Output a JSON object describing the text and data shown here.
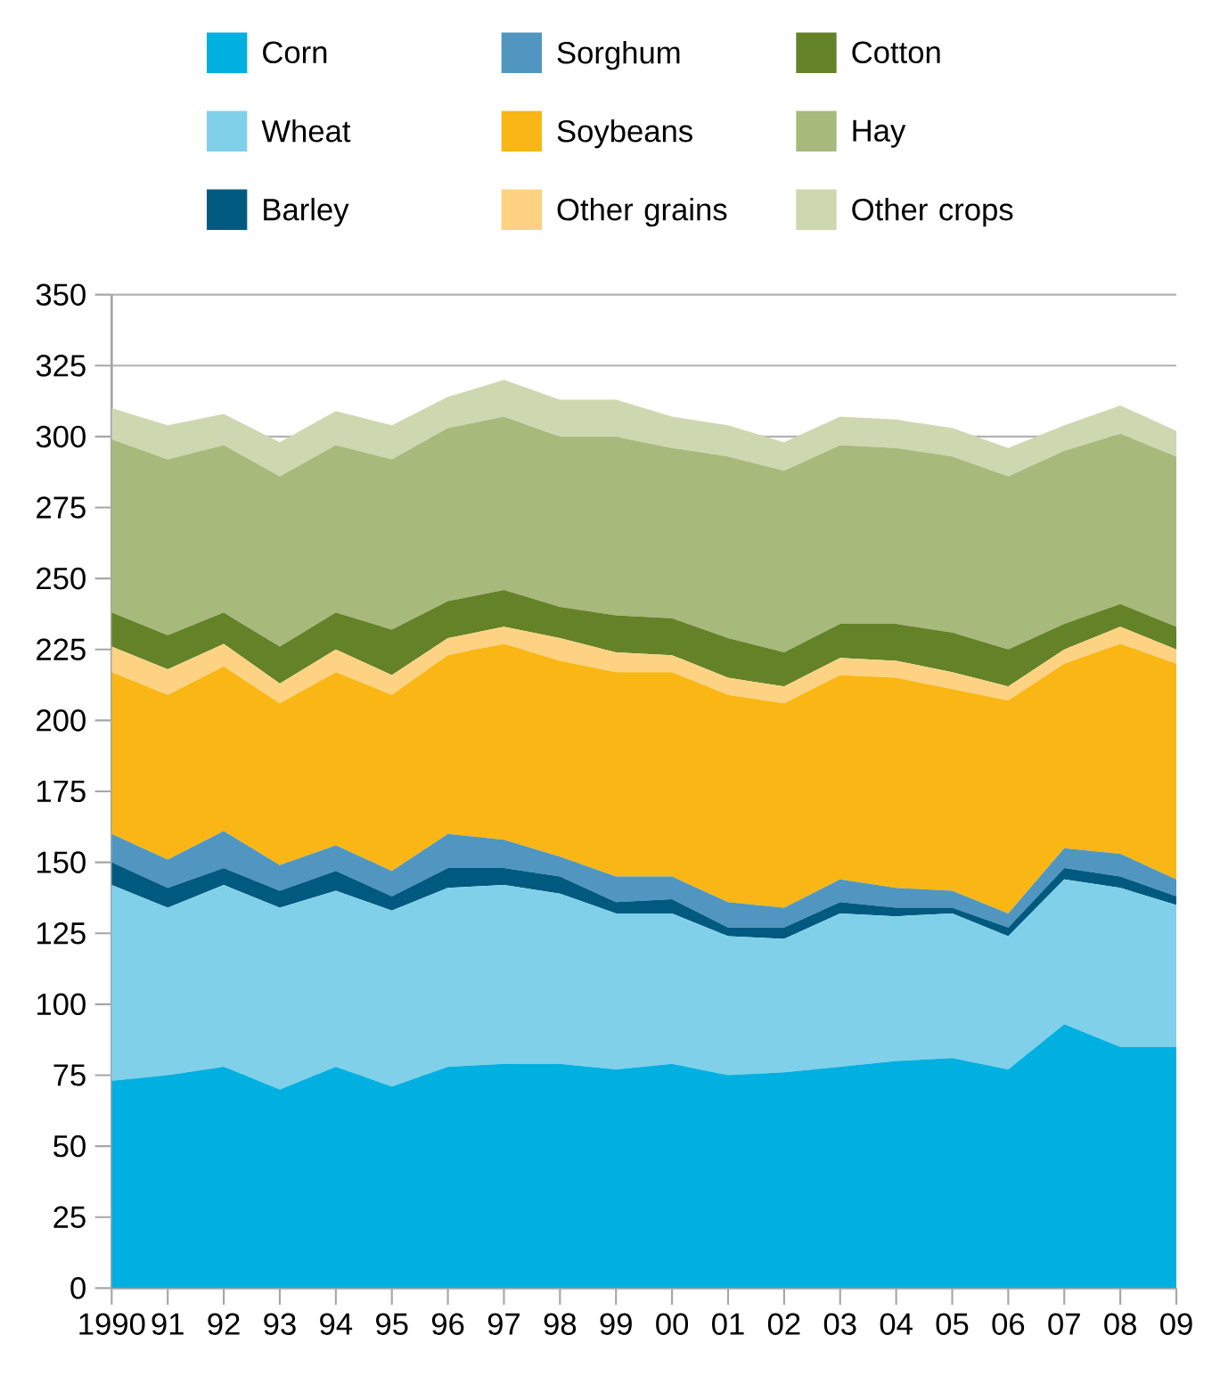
{
  "chart_data": {
    "type": "area",
    "stacked": true,
    "categories": [
      "1990",
      "91",
      "92",
      "93",
      "94",
      "95",
      "96",
      "97",
      "98",
      "99",
      "00",
      "01",
      "02",
      "03",
      "04",
      "05",
      "06",
      "07",
      "08",
      "09"
    ],
    "series": [
      {
        "name": "Corn",
        "color": "#00b0e0",
        "values": [
          73,
          75,
          78,
          70,
          78,
          71,
          78,
          79,
          79,
          77,
          79,
          75,
          76,
          78,
          80,
          81,
          77,
          93,
          85,
          85
        ]
      },
      {
        "name": "Wheat",
        "color": "#80d0ea",
        "values": [
          69,
          59,
          64,
          64,
          62,
          62,
          63,
          63,
          60,
          55,
          53,
          49,
          47,
          54,
          51,
          51,
          47,
          51,
          56,
          50
        ]
      },
      {
        "name": "Barley",
        "color": "#005a80",
        "values": [
          8,
          7,
          6,
          6,
          7,
          5,
          7,
          6,
          6,
          4,
          5,
          3,
          4,
          4,
          3,
          2,
          3,
          4,
          4,
          3
        ]
      },
      {
        "name": "Sorghum",
        "color": "#5096c0",
        "values": [
          10,
          10,
          13,
          9,
          9,
          9,
          12,
          10,
          7,
          9,
          8,
          9,
          7,
          8,
          7,
          6,
          5,
          7,
          8,
          6
        ]
      },
      {
        "name": "Soybeans",
        "color": "#f9b614",
        "values": [
          57,
          58,
          58,
          57,
          61,
          62,
          63,
          69,
          69,
          72,
          72,
          73,
          72,
          72,
          74,
          71,
          75,
          65,
          74,
          76
        ]
      },
      {
        "name": "Other grains",
        "color": "#fdd282",
        "values": [
          9,
          9,
          8,
          7,
          8,
          7,
          6,
          6,
          8,
          7,
          6,
          6,
          6,
          6,
          6,
          6,
          5,
          5,
          6,
          5
        ]
      },
      {
        "name": "Cotton",
        "color": "#648228",
        "values": [
          12,
          12,
          11,
          13,
          13,
          16,
          13,
          13,
          11,
          13,
          13,
          14,
          12,
          12,
          13,
          14,
          13,
          9,
          8,
          8
        ]
      },
      {
        "name": "Hay",
        "color": "#a8b97c",
        "values": [
          61,
          62,
          59,
          60,
          59,
          60,
          61,
          61,
          60,
          63,
          60,
          64,
          64,
          63,
          62,
          62,
          61,
          61,
          60,
          60
        ]
      },
      {
        "name": "Other crops",
        "color": "#cdd8b0",
        "values": [
          11,
          12,
          11,
          12,
          12,
          12,
          11,
          13,
          13,
          13,
          11,
          11,
          10,
          10,
          10,
          10,
          10,
          9,
          10,
          9
        ]
      }
    ],
    "ylim": [
      0,
      350
    ],
    "yticks": [
      0,
      25,
      50,
      75,
      100,
      125,
      150,
      175,
      200,
      225,
      250,
      275,
      300,
      325,
      350
    ],
    "grid": "y",
    "legend": "top"
  }
}
